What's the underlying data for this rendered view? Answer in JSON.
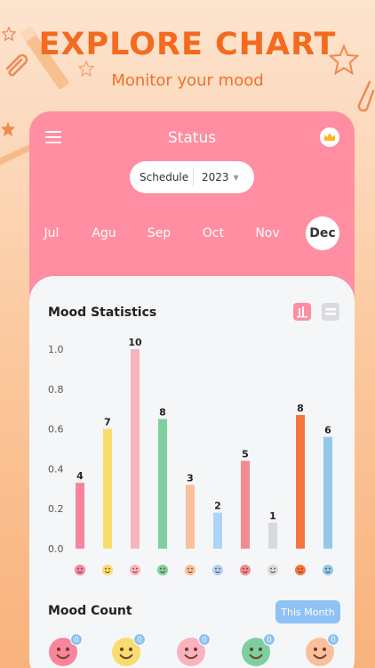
{
  "promo": {
    "headline": "EXPLORE CHART",
    "subline": "Monitor your mood"
  },
  "header": {
    "title": "Status",
    "menu_icon": "hamburger-menu-icon",
    "premium_icon": "crown-icon"
  },
  "schedule": {
    "label": "Schedule",
    "year": "2023"
  },
  "months": [
    {
      "label": "Jul",
      "active": false
    },
    {
      "label": "Agu",
      "active": false
    },
    {
      "label": "Sep",
      "active": false
    },
    {
      "label": "Oct",
      "active": false
    },
    {
      "label": "Nov",
      "active": false
    },
    {
      "label": "Dec",
      "active": true
    }
  ],
  "stats": {
    "title": "Mood Statistics"
  },
  "chart_data": {
    "type": "bar",
    "categories": [
      "happy",
      "smile",
      "love",
      "cool",
      "surprised",
      "calm",
      "neutral",
      "sad",
      "angry",
      "crying"
    ],
    "values": [
      0.33,
      0.6,
      1.0,
      0.65,
      0.32,
      0.18,
      0.44,
      0.13,
      0.67,
      0.56
    ],
    "data_labels": [
      "4",
      "7",
      "10",
      "8",
      "3",
      "2",
      "5",
      "1",
      "8",
      "6"
    ],
    "colors": [
      "#f8859c",
      "#f9dc6e",
      "#f9b3bd",
      "#7ecf9e",
      "#fbbf9a",
      "#acd3f8",
      "#f28b91",
      "#d8d9dd",
      "#f6763f",
      "#93c8ea"
    ],
    "yticks": [
      "1.0",
      "0.8",
      "0.6",
      "0.4",
      "0.2",
      "0.0"
    ],
    "ylim": [
      0,
      1.0
    ],
    "grid": false
  },
  "mood_count": {
    "title": "Mood Count",
    "filter_label": "This Month",
    "items": [
      {
        "mood": "happy",
        "count": "0",
        "color": "#f8859c"
      },
      {
        "mood": "smile",
        "count": "0",
        "color": "#f9dc6e"
      },
      {
        "mood": "love",
        "count": "0",
        "color": "#f9b3bd"
      },
      {
        "mood": "cool",
        "count": "0",
        "color": "#7ecf9e"
      },
      {
        "mood": "surprised",
        "count": "0",
        "color": "#fbbf9a"
      }
    ]
  }
}
